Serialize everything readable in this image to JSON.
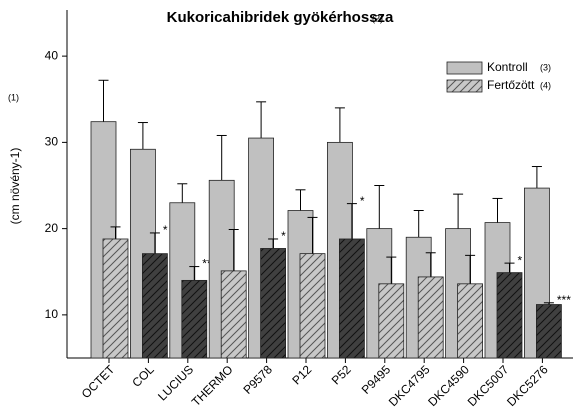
{
  "chart_data": {
    "type": "bar",
    "title": "Kukoricahibridek gyökérhossza",
    "annotations": [
      "(1)",
      "(2)",
      "(3)",
      "(4)"
    ],
    "y_label": "(cm növény-1)",
    "categories": [
      "OCTET",
      "COL",
      "LUCIUS",
      "THERMO",
      "P9578",
      "P12",
      "P52",
      "P9495",
      "DKC4795",
      "DKC4590",
      "DKC5007",
      "DKC5276"
    ],
    "series": [
      {
        "name": "Kontroll",
        "color": "#c0c0c0",
        "hatched": false,
        "values": [
          32.4,
          29.2,
          23.0,
          25.6,
          30.5,
          22.1,
          30.0,
          20.0,
          19.0,
          20.0,
          20.7,
          24.7
        ],
        "errors": [
          4.8,
          3.1,
          2.2,
          5.2,
          4.2,
          2.4,
          4.0,
          5.0,
          3.1,
          4.0,
          2.8,
          2.5
        ]
      },
      {
        "name": "Fertőzött",
        "color": "#c8c8c8",
        "hatched": true,
        "point_colors": [
          "#c8c8c8",
          "#404040",
          "#404040",
          "#c8c8c8",
          "#404040",
          "#c8c8c8",
          "#404040",
          "#c8c8c8",
          "#c8c8c8",
          "#c8c8c8",
          "#404040",
          "#404040"
        ],
        "values": [
          18.8,
          17.1,
          14.0,
          15.1,
          17.7,
          17.1,
          18.8,
          13.6,
          14.4,
          13.6,
          14.9,
          11.2
        ],
        "errors": [
          1.4,
          2.4,
          1.6,
          4.8,
          1.1,
          4.2,
          4.1,
          3.1,
          2.8,
          3.3,
          1.1,
          0.2
        ],
        "significance": [
          null,
          "*",
          "**",
          null,
          "*",
          null,
          "*",
          null,
          null,
          null,
          "*",
          "***"
        ]
      }
    ],
    "ylim": [
      5,
      45
    ],
    "yticks": [
      10,
      20,
      30,
      40
    ],
    "legend": "upper right"
  }
}
